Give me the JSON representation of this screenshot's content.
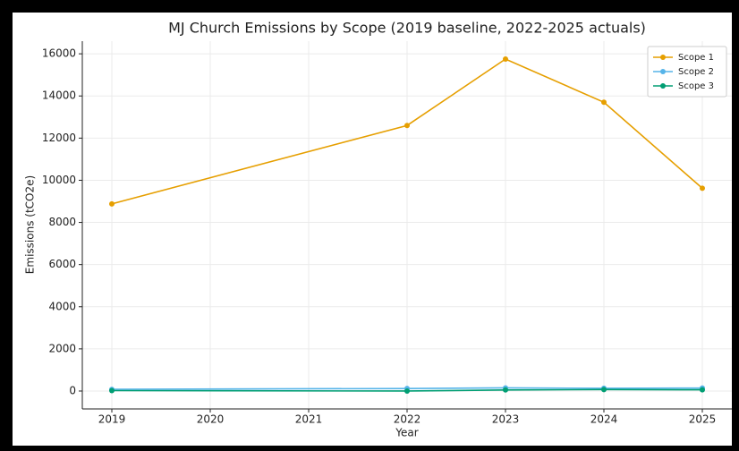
{
  "chart_data": {
    "type": "line",
    "title": "MJ Church Emissions by Scope (2019 baseline, 2022-2025 actuals)",
    "x_label": "Year",
    "y_label": "Emissions (tCO2e)",
    "x": [
      2019,
      2022,
      2023,
      2024,
      2025
    ],
    "series": [
      {
        "name": "Scope 1",
        "color": "#E69F00",
        "values": [
          8880,
          12600,
          15750,
          13700,
          9620
        ]
      },
      {
        "name": "Scope 2",
        "color": "#56B4E9",
        "values": [
          80,
          120,
          150,
          130,
          140
        ]
      },
      {
        "name": "Scope 3",
        "color": "#009E73",
        "values": [
          20,
          0,
          50,
          70,
          60
        ]
      }
    ],
    "xlim": [
      2018.7,
      2025.3
    ],
    "xticks": [
      2019,
      2020,
      2021,
      2022,
      2023,
      2024,
      2025
    ],
    "ylim": [
      -850,
      16600
    ],
    "yticks": [
      0,
      2000,
      4000,
      6000,
      8000,
      10000,
      12000,
      14000,
      16000
    ],
    "grid": true,
    "legend": "upper right"
  }
}
